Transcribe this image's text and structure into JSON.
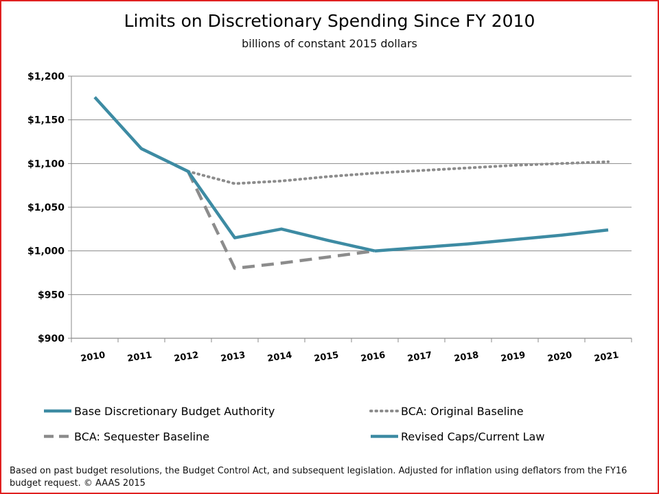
{
  "title": "Limits on Discretionary Spending Since FY 2010",
  "subtitle": "billions of constant 2015 dollars",
  "footnote": "Based on past budget resolutions, the Budget Control Act, and subsequent legislation.  Adjusted for inflation using deflators from the FY16 budget request. © AAAS 2015",
  "chart_data": {
    "type": "line",
    "title": "Limits on Discretionary Spending Since FY 2010",
    "subtitle": "billions of constant 2015 dollars",
    "xlabel": "",
    "ylabel": "",
    "categories": [
      "2010",
      "2011",
      "2012",
      "2013",
      "2014",
      "2015",
      "2016",
      "2017",
      "2018",
      "2019",
      "2020",
      "2021"
    ],
    "ylim": [
      900,
      1200
    ],
    "yticks": [
      900,
      950,
      1000,
      1050,
      1100,
      1150,
      1200
    ],
    "ytick_labels": [
      "$900",
      "$950",
      "$1,000",
      "$1,050",
      "$1,100",
      "$1,150",
      "$1,200"
    ],
    "grid": true,
    "legend_position": "bottom",
    "series": [
      {
        "name": "Base Discretionary Budget Authority",
        "style": "solid",
        "color": "#3d8ba3",
        "values": [
          1176,
          1117,
          1091,
          1015,
          1025,
          1012,
          1000,
          null,
          null,
          null,
          null,
          null
        ]
      },
      {
        "name": "BCA: Original Baseline",
        "style": "dotted",
        "color": "#8c8c8c",
        "values": [
          null,
          null,
          1091,
          1077,
          1080,
          1085,
          1089,
          1092,
          1095,
          1098,
          1100,
          1102
        ]
      },
      {
        "name": "BCA: Sequester Baseline",
        "style": "dashed",
        "color": "#8c8c8c",
        "values": [
          null,
          null,
          1091,
          980,
          986,
          993,
          1000,
          null,
          null,
          null,
          null,
          null
        ]
      },
      {
        "name": "Revised Caps/Current Law",
        "style": "solid",
        "color": "#3d8ba3",
        "values": [
          null,
          null,
          null,
          null,
          null,
          null,
          1000,
          1004,
          1008,
          1013,
          1018,
          1024
        ]
      }
    ]
  }
}
